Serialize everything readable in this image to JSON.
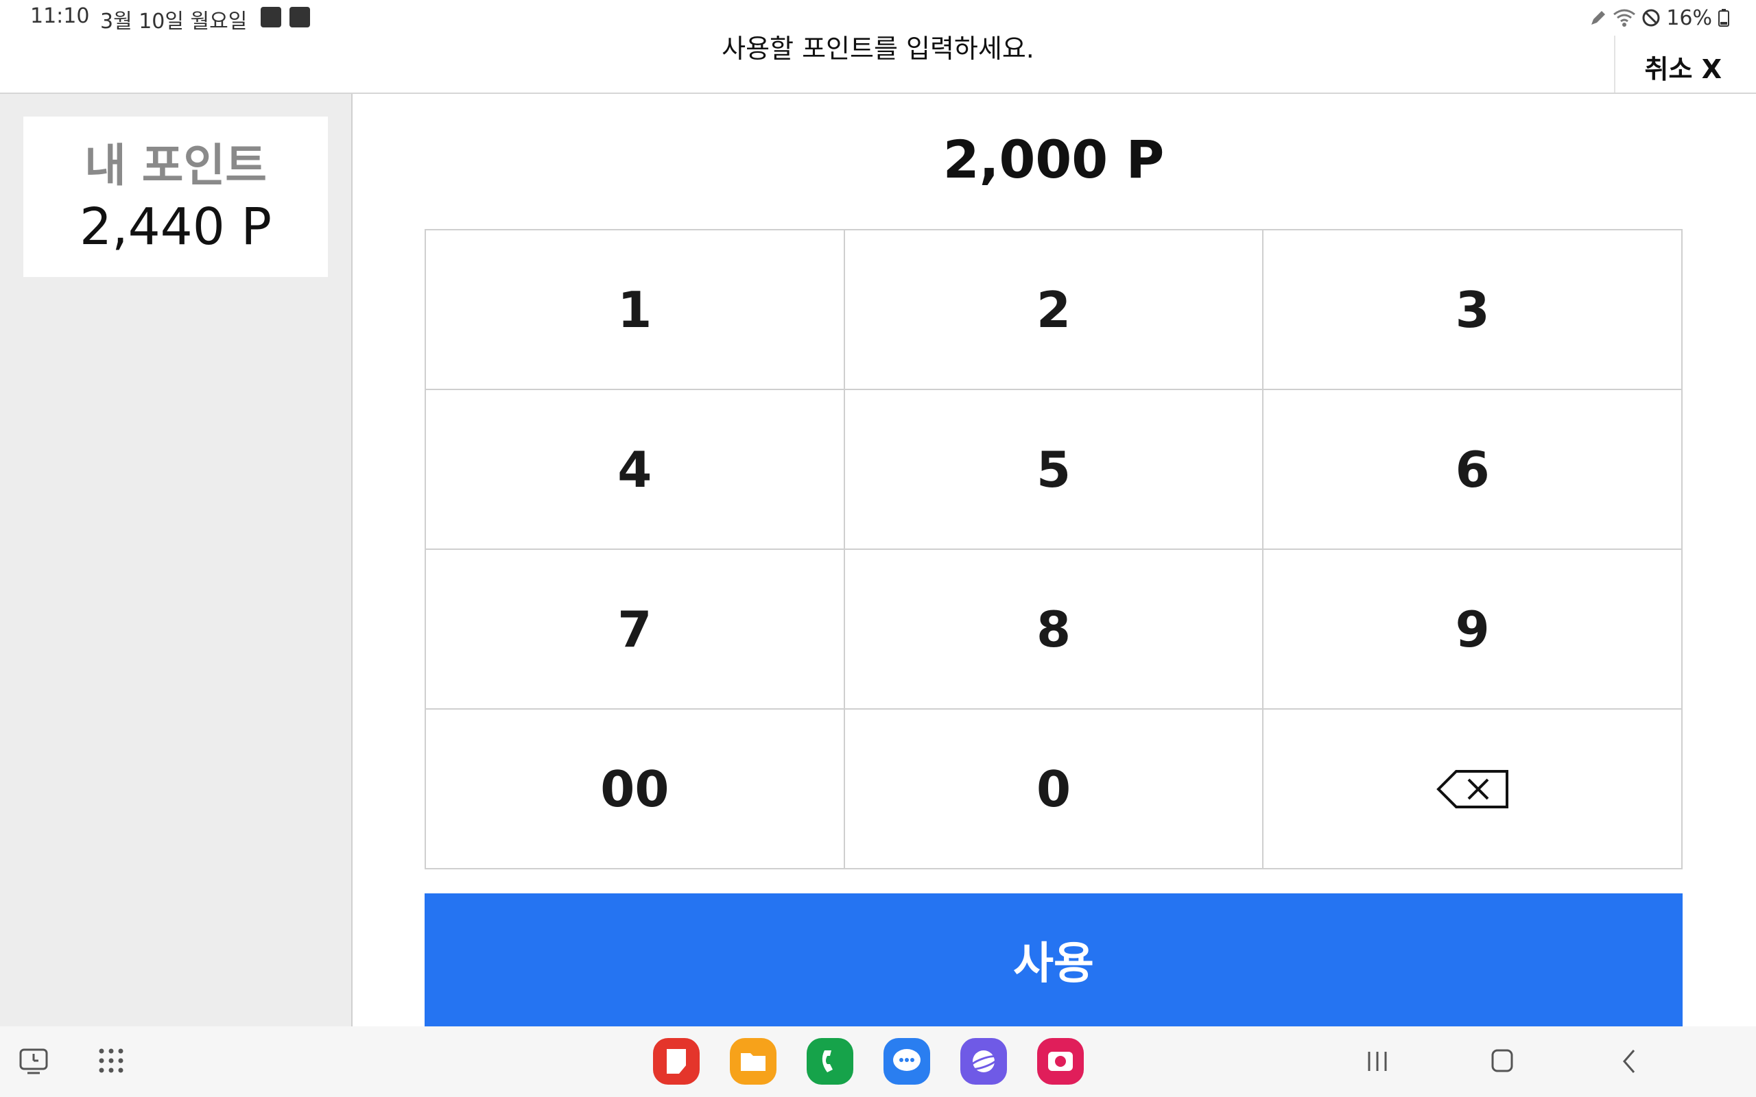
{
  "status_bar": {
    "time": "11:10",
    "date": "3월 10일 월요일",
    "battery": "16%"
  },
  "header": {
    "title": "사용할 포인트를 입력하세요.",
    "cancel_label": "취소 X"
  },
  "my_points": {
    "label": "내 포인트",
    "value": "2,440 P"
  },
  "input": {
    "amount": "2,000 P"
  },
  "keypad": {
    "keys": [
      "1",
      "2",
      "3",
      "4",
      "5",
      "6",
      "7",
      "8",
      "9",
      "00",
      "0"
    ]
  },
  "use_button_label": "사용",
  "colors": {
    "accent": "#2574f2",
    "left_panel_bg": "#ededed"
  },
  "dock_icons": [
    "notes-app-icon",
    "my-files-icon",
    "phone-icon",
    "messages-icon",
    "internet-icon",
    "camera-icon"
  ],
  "nav_icons": [
    "recent-apps-icon",
    "home-icon",
    "back-icon"
  ]
}
